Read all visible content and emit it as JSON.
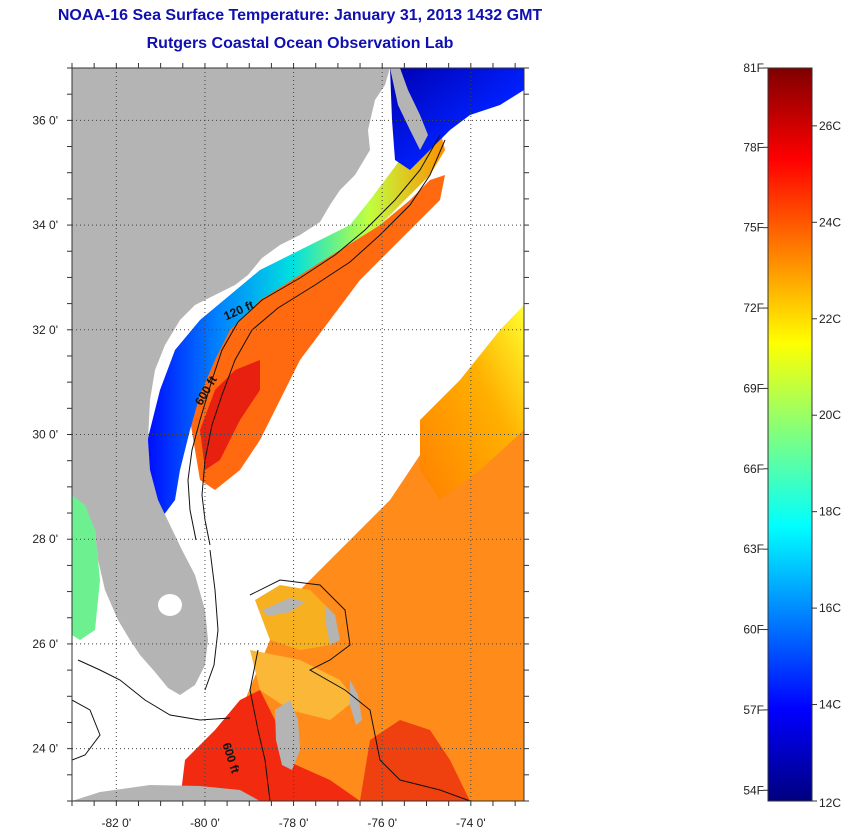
{
  "title": {
    "line1": "NOAA-16 Sea Surface Temperature:  January 31, 2013 1432 GMT",
    "line2": "Rutgers Coastal Ocean Observation Lab"
  },
  "map": {
    "lon_range": [
      -83,
      -72.8
    ],
    "lat_range": [
      23,
      37
    ],
    "lon_ticks": [
      {
        "value": -82,
        "label": "-82 0'"
      },
      {
        "value": -80,
        "label": "-80 0'"
      },
      {
        "value": -78,
        "label": "-78 0'"
      },
      {
        "value": -76,
        "label": "-76 0'"
      },
      {
        "value": -74,
        "label": "-74 0'"
      }
    ],
    "lat_ticks": [
      {
        "value": 36,
        "label": "36 0'"
      },
      {
        "value": 34,
        "label": "34 0'"
      },
      {
        "value": 32,
        "label": "32 0'"
      },
      {
        "value": 30,
        "label": "30 0'"
      },
      {
        "value": 28,
        "label": "28 0'"
      },
      {
        "value": 26,
        "label": "26 0'"
      },
      {
        "value": 24,
        "label": "24 0'"
      }
    ],
    "grid": "dotted",
    "land_color": "#b4b4b4",
    "no_data_color": "#ffffff",
    "contour_labels": [
      {
        "text": "120 ft",
        "lon": -79.2,
        "lat": 32.3,
        "angle": -24
      },
      {
        "text": "600 ft",
        "lon": -79.9,
        "lat": 30.8,
        "angle": -60
      },
      {
        "text": "600 ft",
        "lon": -79.5,
        "lat": 23.8,
        "angle": 72
      }
    ]
  },
  "colorbar": {
    "colors": [
      "#00007f",
      "#0000ff",
      "#007fff",
      "#00ffff",
      "#7fff7f",
      "#ffff00",
      "#ff7f00",
      "#ff0000",
      "#7f0000"
    ],
    "min_c": 12,
    "max_c": 27.2,
    "fahrenheit_labels": [
      {
        "value": 81,
        "label": "81F"
      },
      {
        "value": 78,
        "label": "78F"
      },
      {
        "value": 75,
        "label": "75F"
      },
      {
        "value": 72,
        "label": "72F"
      },
      {
        "value": 69,
        "label": "69F"
      },
      {
        "value": 66,
        "label": "66F"
      },
      {
        "value": 63,
        "label": "63F"
      },
      {
        "value": 60,
        "label": "60F"
      },
      {
        "value": 57,
        "label": "57F"
      },
      {
        "value": 54,
        "label": "54F"
      }
    ],
    "celsius_labels": [
      {
        "value": 26,
        "label": "26C"
      },
      {
        "value": 24,
        "label": "24C"
      },
      {
        "value": 22,
        "label": "22C"
      },
      {
        "value": 20,
        "label": "20C"
      },
      {
        "value": 18,
        "label": "18C"
      },
      {
        "value": 16,
        "label": "16C"
      },
      {
        "value": 14,
        "label": "14C"
      },
      {
        "value": 12,
        "label": "12C"
      }
    ]
  }
}
